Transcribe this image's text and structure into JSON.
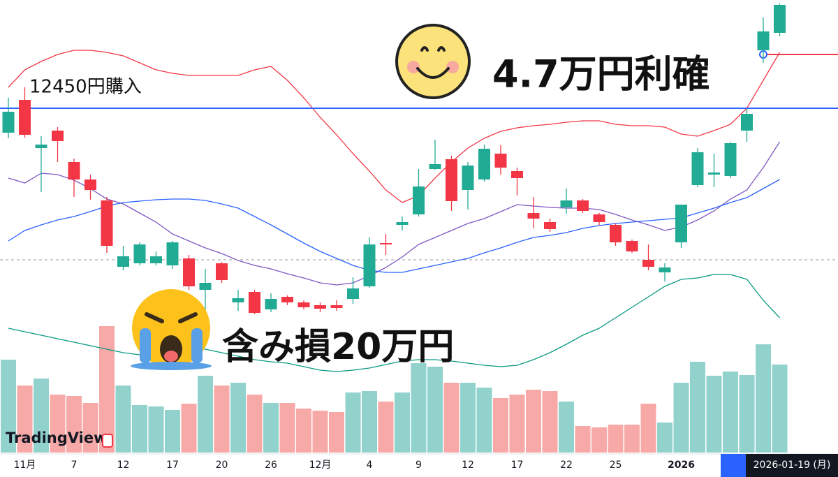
{
  "chart_data": {
    "type": "candlestick",
    "categories": [
      null,
      "11月",
      null,
      null,
      "7",
      null,
      null,
      "12",
      null,
      null,
      "17",
      null,
      null,
      "20",
      null,
      null,
      "26",
      null,
      null,
      "12月",
      null,
      null,
      "4",
      null,
      null,
      "9",
      null,
      null,
      "12",
      null,
      null,
      "17",
      null,
      null,
      "22",
      null,
      null,
      "25",
      null,
      null,
      null,
      "2026",
      null,
      null,
      null,
      null,
      null,
      null
    ],
    "open": [
      12275,
      12510,
      12165,
      12290,
      12065,
      11940,
      11790,
      11315,
      11340,
      11340,
      11325,
      11375,
      11150,
      11340,
      11060,
      11135,
      11010,
      11100,
      11060,
      11040,
      11040,
      11085,
      11175,
      11485,
      11615,
      11690,
      12015,
      12085,
      11865,
      11940,
      12125,
      12000,
      11700,
      11635,
      11740,
      11790,
      11690,
      11615,
      11500,
      11365,
      11275,
      11490,
      11900,
      11975,
      11965,
      12290,
      12865,
      12990
    ],
    "high": [
      12525,
      12600,
      12250,
      12315,
      12090,
      11975,
      11815,
      11465,
      11490,
      11425,
      11500,
      11400,
      11300,
      11350,
      11150,
      11150,
      11125,
      11110,
      11075,
      11060,
      11075,
      11240,
      11525,
      11550,
      11675,
      12015,
      12225,
      12110,
      12065,
      12190,
      12185,
      12025,
      11815,
      11660,
      11875,
      11800,
      11700,
      11625,
      11510,
      11475,
      11340,
      11760,
      12165,
      12125,
      12210,
      12450,
      13100,
      13200
    ],
    "low": [
      12235,
      12240,
      11850,
      12065,
      11815,
      11795,
      11415,
      11290,
      11325,
      11325,
      11300,
      11150,
      11000,
      11200,
      11000,
      10975,
      10990,
      11040,
      11010,
      10990,
      11000,
      11050,
      11165,
      11400,
      11575,
      11675,
      12010,
      11715,
      11725,
      11925,
      11975,
      11825,
      11590,
      11565,
      11695,
      11700,
      11615,
      11465,
      11415,
      11290,
      11210,
      11450,
      11885,
      11885,
      11950,
      12210,
      12775,
      12965
    ],
    "close": [
      12425,
      12260,
      12190,
      12215,
      11940,
      11865,
      11465,
      11390,
      11475,
      11390,
      11490,
      11175,
      11200,
      11220,
      11090,
      10985,
      11085,
      11060,
      11025,
      11015,
      11020,
      11160,
      11475,
      11475,
      11635,
      11890,
      12050,
      11785,
      12040,
      12160,
      12025,
      11950,
      11660,
      11585,
      11790,
      11715,
      11635,
      11490,
      11425,
      11315,
      11310,
      11760,
      12135,
      11990,
      12200,
      12410,
      13000,
      13190
    ],
    "volume": [
      133,
      96,
      106,
      83,
      81,
      71,
      181,
      96,
      68,
      66,
      61,
      70,
      110,
      96,
      100,
      83,
      71,
      71,
      63,
      60,
      58,
      86,
      88,
      73,
      86,
      128,
      123,
      100,
      100,
      93,
      78,
      83,
      90,
      88,
      73,
      38,
      36,
      40,
      40,
      70,
      43,
      100,
      130,
      110,
      116,
      111,
      155,
      126
    ],
    "up_color": "#22ab94",
    "down_color": "#f23645",
    "up_volume_color": "#92d2cc",
    "down_volume_color": "#f7a9a7",
    "ylim": [
      9810,
      13225
    ],
    "volume_lim": [
      0,
      220
    ],
    "indicators": [
      {
        "color": "#f23645",
        "values": [
          12600,
          12725,
          12785,
          12835,
          12865,
          12865,
          12850,
          12825,
          12775,
          12725,
          12700,
          12685,
          12685,
          12685,
          12685,
          12725,
          12750,
          12650,
          12525,
          12385,
          12260,
          12125,
          12000,
          11865,
          11775,
          11825,
          11950,
          12065,
          12165,
          12235,
          12285,
          12310,
          12325,
          12335,
          12350,
          12360,
          12360,
          12335,
          12325,
          12325,
          12315,
          12265,
          12250,
          12290,
          12335,
          12450,
          12650,
          12850
        ]
      },
      {
        "color": "#7e57c2",
        "values": [
          11950,
          11915,
          11985,
          11975,
          11935,
          11875,
          11800,
          11765,
          11700,
          11635,
          11550,
          11500,
          11450,
          11410,
          11360,
          11325,
          11300,
          11265,
          11235,
          11200,
          11185,
          11200,
          11250,
          11310,
          11385,
          11475,
          11525,
          11575,
          11625,
          11660,
          11710,
          11760,
          11750,
          11740,
          11735,
          11735,
          11725,
          11690,
          11650,
          11615,
          11575,
          11600,
          11650,
          11715,
          11800,
          11865,
          12025,
          12210
        ]
      },
      {
        "color": "#2962ff",
        "values": [
          11500,
          11575,
          11615,
          11650,
          11675,
          11710,
          11750,
          11775,
          11785,
          11795,
          11800,
          11800,
          11790,
          11765,
          11735,
          11675,
          11615,
          11550,
          11485,
          11425,
          11375,
          11325,
          11290,
          11275,
          11275,
          11300,
          11325,
          11350,
          11375,
          11415,
          11450,
          11490,
          11525,
          11540,
          11560,
          11590,
          11610,
          11625,
          11635,
          11645,
          11655,
          11665,
          11700,
          11735,
          11775,
          11810,
          11875,
          11940
        ]
      },
      {
        "color": "#089981",
        "values": [
          10875,
          10850,
          10825,
          10800,
          10775,
          10750,
          10725,
          10700,
          10685,
          10700,
          10725,
          10750,
          10725,
          10700,
          10675,
          10650,
          10635,
          10625,
          10600,
          10575,
          10565,
          10575,
          10590,
          10615,
          10640,
          10650,
          10650,
          10640,
          10625,
          10610,
          10600,
          10610,
          10650,
          10700,
          10760,
          10825,
          10875,
          10950,
          11025,
          11100,
          11175,
          11225,
          11235,
          11260,
          11260,
          11225,
          11075,
          10950
        ]
      }
    ],
    "entry_line": {
      "value": 12450,
      "color": "#2962ff"
    },
    "take_profit_line": {
      "value": 12835,
      "color": "#f23645"
    },
    "dashed_line": 11365,
    "annotations": [
      "12450円購入",
      "4.7万円利確",
      "含み損20万円"
    ],
    "watermark": "TradingView",
    "crosshair_label": "2026-01-19 (月)"
  }
}
